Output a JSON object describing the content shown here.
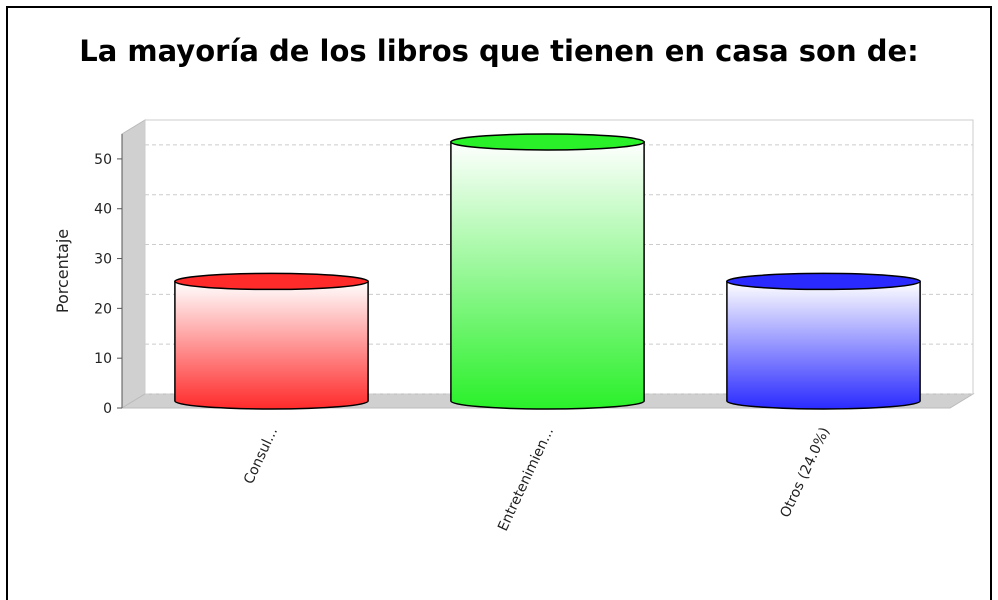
{
  "chart_data": {
    "type": "bar3d_cylinder",
    "title": "La mayoría de los libros que tienen en casa son de:",
    "y_label": "Porcentaje",
    "categories": [
      "Consul...",
      "Entretenimien...",
      "Otros (24.0%)"
    ],
    "series": [
      {
        "name": "Porcentaje",
        "values": [
          24,
          52,
          24
        ],
        "colors": [
          "#ff2a2a",
          "#2af02a",
          "#2a2aff"
        ]
      }
    ],
    "ylim": [
      0,
      55
    ],
    "yticks": [
      0,
      10,
      20,
      30,
      40,
      50
    ],
    "grid": true
  }
}
